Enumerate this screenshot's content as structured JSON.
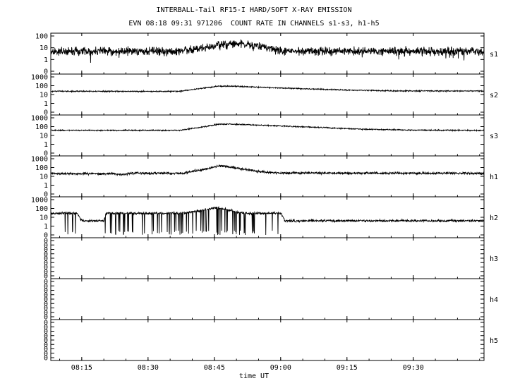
{
  "chart_data": {
    "type": "line",
    "title": "INTERBALL-Tail RF15-I HARD/SOFT X-RAY EMISSION",
    "subtitle": "EVN 08:18 09:31 971206  COUNT RATE IN CHANNELS s1-s3, h1-h5",
    "xlabel": "time UT",
    "x_ticks": [
      "08:15",
      "08:30",
      "08:45",
      "09:00",
      "09:15",
      "09:30"
    ],
    "x_range_minutes": [
      488,
      586
    ],
    "y_scale": "log",
    "grid": false,
    "panels": [
      {
        "name": "s1",
        "y_ticks": [
          "100",
          "10",
          "1",
          "0"
        ],
        "profile": [
          [
            488,
            5
          ],
          [
            517,
            5
          ],
          [
            524,
            12
          ],
          [
            527,
            23
          ],
          [
            530,
            24
          ],
          [
            535,
            14
          ],
          [
            540,
            6
          ],
          [
            545,
            5
          ],
          [
            586,
            5
          ]
        ],
        "noise": "high"
      },
      {
        "name": "s2",
        "y_ticks": [
          "1000",
          "100",
          "10",
          "1",
          "0"
        ],
        "profile": [
          [
            488,
            23
          ],
          [
            517,
            23
          ],
          [
            522,
            50
          ],
          [
            526,
            88
          ],
          [
            530,
            85
          ],
          [
            540,
            55
          ],
          [
            555,
            32
          ],
          [
            565,
            26
          ],
          [
            586,
            25
          ]
        ],
        "noise": "low"
      },
      {
        "name": "s3",
        "y_ticks": [
          "1000",
          "100",
          "10",
          "1",
          "0"
        ],
        "profile": [
          [
            488,
            38
          ],
          [
            517,
            38
          ],
          [
            522,
            85
          ],
          [
            526,
            190
          ],
          [
            530,
            185
          ],
          [
            545,
            95
          ],
          [
            558,
            52
          ],
          [
            570,
            40
          ],
          [
            586,
            37
          ]
        ],
        "noise": "low"
      },
      {
        "name": "h1",
        "y_ticks": [
          "1000",
          "100",
          "10",
          "1",
          "0"
        ],
        "profile": [
          [
            488,
            20
          ],
          [
            502,
            20
          ],
          [
            504,
            16
          ],
          [
            506,
            22
          ],
          [
            518,
            22
          ],
          [
            524,
            85
          ],
          [
            526,
            170
          ],
          [
            529,
            110
          ],
          [
            535,
            35
          ],
          [
            540,
            24
          ],
          [
            586,
            22
          ]
        ],
        "noise": "medium"
      },
      {
        "name": "h2",
        "y_ticks": [
          "1000",
          "100",
          "10",
          "1",
          "0"
        ],
        "profile": [
          [
            488,
            28
          ],
          [
            494,
            28
          ],
          [
            495,
            4
          ],
          [
            500,
            4
          ],
          [
            500.5,
            28
          ],
          [
            518,
            28
          ],
          [
            523,
            70
          ],
          [
            525,
            120
          ],
          [
            527,
            95
          ],
          [
            530,
            40
          ],
          [
            532,
            28
          ],
          [
            540,
            28
          ],
          [
            541,
            4
          ],
          [
            586,
            4
          ]
        ],
        "noise": "dropouts",
        "dropout_ranges": [
          [
            488,
            494
          ],
          [
            500,
            540
          ]
        ]
      },
      {
        "name": "h3",
        "y_ticks": [
          "0",
          "0",
          "0",
          "0",
          "0",
          "0",
          "0",
          "0",
          "0"
        ],
        "profile": [],
        "noise": "none"
      },
      {
        "name": "h4",
        "y_ticks": [
          "0",
          "0",
          "0",
          "0",
          "0",
          "0",
          "0",
          "0",
          "0"
        ],
        "profile": [],
        "noise": "none"
      },
      {
        "name": "h5",
        "y_ticks": [
          "0",
          "0",
          "0",
          "0",
          "0",
          "0",
          "0",
          "0",
          "0"
        ],
        "profile": [],
        "noise": "none"
      }
    ]
  }
}
